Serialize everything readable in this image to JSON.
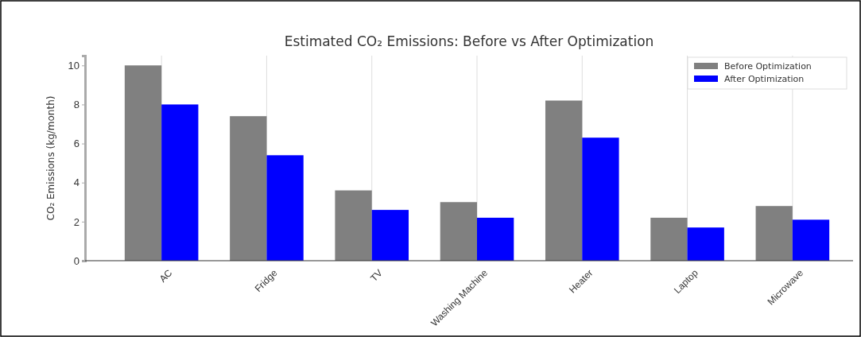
{
  "chart_data": {
    "type": "bar",
    "title": "Estimated CO₂ Emissions: Before vs After Optimization",
    "ylabel": "CO₂ Emissions (kg/month)",
    "categories": [
      "AC",
      "Fridge",
      "TV",
      "Washing Machine",
      "Heater",
      "Laptop",
      "Microwave"
    ],
    "series": [
      {
        "name": "Before Optimization",
        "color": "#808080",
        "values": [
          10,
          7.4,
          3.6,
          3.0,
          8.2,
          2.2,
          2.8
        ]
      },
      {
        "name": "After Optimization",
        "color": "#0000ff",
        "values": [
          8,
          5.4,
          2.6,
          2.2,
          6.3,
          1.7,
          2.1
        ]
      }
    ],
    "ylim": [
      0,
      10.5
    ],
    "yticks": [
      0,
      2,
      4,
      6,
      8,
      10
    ],
    "grid": "x",
    "legend": "top right"
  }
}
